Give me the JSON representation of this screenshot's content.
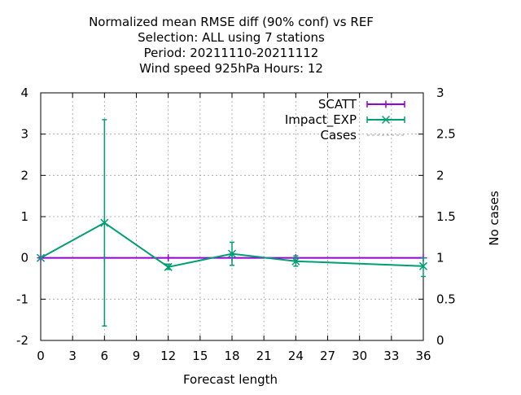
{
  "chart_data": {
    "type": "line",
    "title_lines": [
      "Normalized mean RMSE diff (90% conf) vs REF",
      "Selection: ALL using     7 stations",
      "Period: 20211110-20211112",
      "Wind speed 925hPa   Hours:  12"
    ],
    "xlabel": "Forecast length",
    "ylabel": "",
    "y2label": "No cases",
    "xlim": [
      0,
      36
    ],
    "ylim": [
      -2,
      4
    ],
    "y2lim": [
      0,
      3
    ],
    "xticks": [
      "0",
      "3",
      "6",
      "9",
      "12",
      "15",
      "18",
      "21",
      "24",
      "27",
      "30",
      "33",
      "36"
    ],
    "yticks": [
      "-2",
      "-1",
      "0",
      "1",
      "2",
      "3",
      "4"
    ],
    "y2ticks": [
      "0",
      "0.5",
      "1",
      "1.5",
      "2",
      "2.5",
      "3"
    ],
    "grid": true,
    "legend_position": "top-right",
    "series": [
      {
        "name": "SCATT",
        "color": "#9400d3",
        "marker": "plus",
        "x": [
          0,
          6,
          12,
          18,
          24,
          36
        ],
        "y": [
          0,
          0,
          0,
          0,
          0,
          0
        ],
        "err_low": [
          0,
          0,
          0,
          0,
          0,
          0
        ],
        "err_high": [
          0,
          0,
          0,
          0,
          0,
          0
        ]
      },
      {
        "name": "Impact_EXP",
        "color": "#009e73",
        "marker": "cross",
        "x": [
          0,
          6,
          12,
          18,
          24,
          36
        ],
        "y": [
          0,
          0.85,
          -0.22,
          0.1,
          -0.08,
          -0.2
        ],
        "err_low": [
          0,
          -1.65,
          -0.28,
          -0.18,
          -0.2,
          -0.45
        ],
        "err_high": [
          0,
          3.35,
          -0.15,
          0.38,
          0.05,
          0.0
        ]
      },
      {
        "name": "Cases",
        "color": "#a0a0a0",
        "dash": true,
        "axis": "y2",
        "x": [],
        "y": []
      }
    ]
  }
}
